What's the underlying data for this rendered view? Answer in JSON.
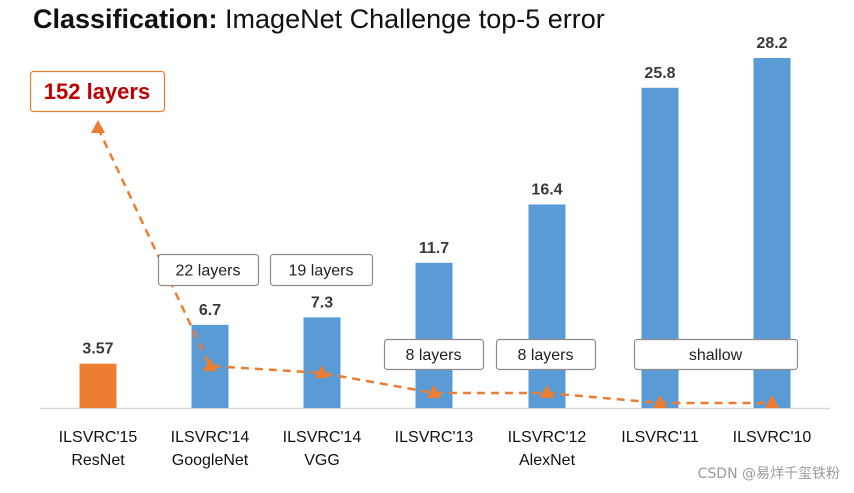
{
  "title_bold": "Classification:",
  "title_rest": " ImageNet Challenge top-5 error",
  "watermark": "CSDN @易烊千玺铁粉",
  "colors": {
    "bar_blue": "#5a9bd5",
    "bar_orange": "#ed7d31",
    "dash_orange": "#ed7d31",
    "callout_red": "#c00000"
  },
  "chart_data": {
    "type": "bar",
    "title": "Classification: ImageNet Challenge top-5 error",
    "categories": [
      {
        "line1": "ILSVRC'15",
        "line2": "ResNet"
      },
      {
        "line1": "ILSVRC'14",
        "line2": "GoogleNet"
      },
      {
        "line1": "ILSVRC'14",
        "line2": "VGG"
      },
      {
        "line1": "ILSVRC'13",
        "line2": ""
      },
      {
        "line1": "ILSVRC'12",
        "line2": "AlexNet"
      },
      {
        "line1": "ILSVRC'11",
        "line2": ""
      },
      {
        "line1": "ILSVRC'10",
        "line2": ""
      }
    ],
    "values": [
      3.57,
      6.7,
      7.3,
      11.7,
      16.4,
      25.8,
      28.2
    ],
    "value_labels": [
      "3.57",
      "6.7",
      "7.3",
      "11.7",
      "16.4",
      "25.8",
      "28.2"
    ],
    "highlight_index": 0,
    "ylim": [
      0,
      28.2
    ],
    "depth_annotations": [
      {
        "label": "152 layers",
        "bar_index": 0,
        "emphasis": true
      },
      {
        "label": "22 layers",
        "bar_index": 1
      },
      {
        "label": "19 layers",
        "bar_index": 2
      },
      {
        "label": "8 layers",
        "bar_index": 3
      },
      {
        "label": "8 layers",
        "bar_index": 4
      },
      {
        "label": "shallow",
        "bar_index": 5
      }
    ],
    "depth_trend": "dashed orange line with triangle markers; rising toward the 152-layer ResNet"
  }
}
